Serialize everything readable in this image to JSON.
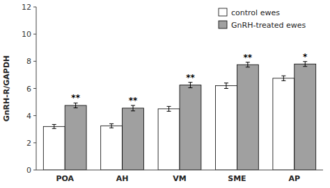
{
  "chart_data": {
    "type": "bar",
    "ylabel": "GnRH-R/GAPDH",
    "categories": [
      "POA",
      "AH",
      "VM",
      "SME",
      "AP"
    ],
    "series": [
      {
        "name": "control ewes",
        "color": "#ffffff",
        "values": [
          3.2,
          3.25,
          4.5,
          6.2,
          6.75
        ],
        "errors": [
          0.15,
          0.15,
          0.18,
          0.2,
          0.18
        ]
      },
      {
        "name": "GnRH-treated ewes",
        "color": "#a0a0a0",
        "values": [
          4.75,
          4.55,
          6.25,
          7.75,
          7.8
        ],
        "errors": [
          0.18,
          0.2,
          0.2,
          0.18,
          0.18
        ],
        "annotations": [
          "**",
          "**",
          "**",
          "**",
          "*"
        ]
      }
    ],
    "ylim": [
      0,
      12
    ],
    "yticks": [
      0,
      2,
      4,
      6,
      8,
      10,
      12
    ],
    "grid": false,
    "legend": "upper right"
  }
}
